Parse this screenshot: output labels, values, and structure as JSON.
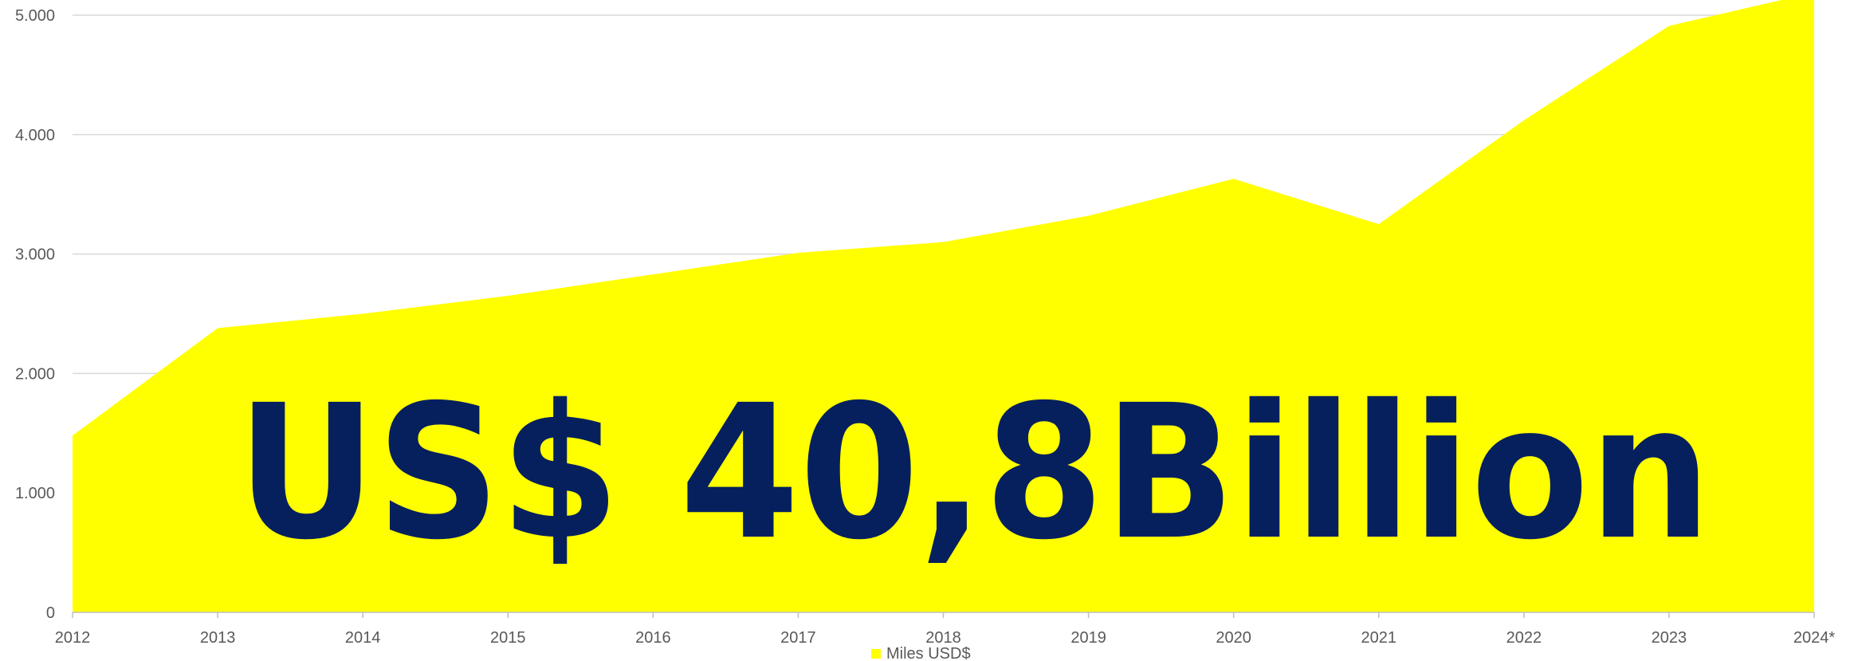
{
  "chart_data": {
    "type": "area",
    "title": "",
    "xlabel": "",
    "ylabel": "",
    "categories": [
      "2012",
      "2013",
      "2014",
      "2015",
      "2016",
      "2017",
      "2018",
      "2019",
      "2020",
      "2021",
      "2022",
      "2023",
      "2024*"
    ],
    "series": [
      {
        "name": "Miles USD$",
        "color": "#ffff00",
        "values": [
          1480,
          2380,
          2500,
          2650,
          2830,
          3010,
          3100,
          3320,
          3630,
          3250,
          4120,
          4910,
          5190
        ]
      }
    ],
    "ylim": [
      0,
      5000
    ],
    "yticks": [
      "0",
      "1.000",
      "2.000",
      "3.000",
      "4.000",
      "5.000"
    ],
    "grid": true,
    "legend": "bottom-center",
    "annotation": "US$ 40,8Billion",
    "annotation_color": "#06205e"
  }
}
